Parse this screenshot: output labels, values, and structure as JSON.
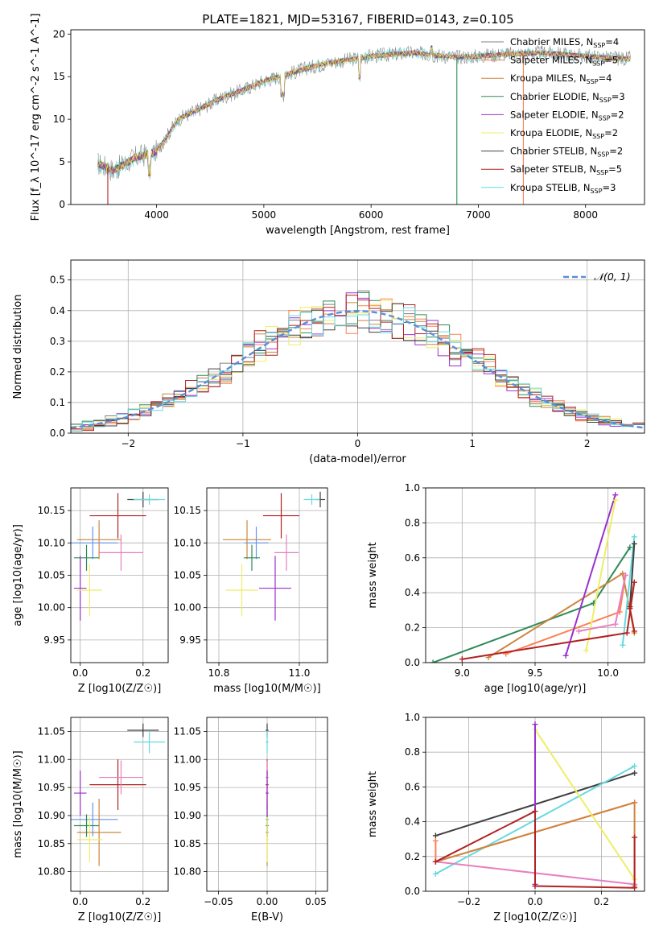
{
  "title": "PLATE=1821, MJD=53167, FIBERID=0143, z=0.105",
  "colors": {
    "chabrier_miles": "#808080",
    "salpeter_miles": "#ff7f50",
    "kroupa_miles": "#cd853f",
    "chabrier_elodie": "#2e8b57",
    "salpeter_elodie": "#9932cc",
    "kroupa_elodie": "#eeee66",
    "chabrier_stelib": "#404040",
    "salpeter_stelib": "#b22222",
    "kroupa_stelib": "#66d9e0",
    "extra_blue": "#6495ed",
    "extra_pink": "#e87fbf",
    "normal": "#5b8ed6"
  },
  "chart_data": [
    {
      "type": "line",
      "id": "spectrum",
      "xlabel": "wavelength [Angstrom, rest frame]",
      "ylabel": "Flux [f_λ 10^-17 erg cm^-2 s^-1 A^-1]",
      "xlim": [
        3200,
        8550
      ],
      "ylim": [
        0,
        20.5
      ],
      "xticks": [
        4000,
        5000,
        6000,
        7000,
        8000
      ],
      "yticks": [
        0,
        5,
        10,
        15,
        20
      ],
      "legend_position": "right",
      "x": [
        3450,
        3600,
        3800,
        4000,
        4200,
        4400,
        4600,
        4800,
        5000,
        5200,
        5400,
        5600,
        5800,
        6000,
        6200,
        6400,
        6600,
        6800,
        7000,
        7200,
        7400,
        7600,
        7800,
        8000,
        8200,
        8400
      ],
      "flux": [
        4.8,
        4.0,
        5.5,
        6.2,
        10.0,
        11.2,
        12.5,
        13.4,
        14.5,
        15.2,
        16.0,
        16.6,
        17.0,
        17.4,
        17.6,
        17.8,
        17.5,
        17.3,
        17.4,
        17.6,
        17.7,
        17.8,
        17.6,
        17.4,
        17.2,
        17.1
      ],
      "legend": [
        {
          "label": "Chabrier MILES, N",
          "sub": "SSP",
          "suffix": "=4",
          "color": "#808080"
        },
        {
          "label": "Salpeter MILES, N",
          "sub": "SSP",
          "suffix": "=5",
          "color": "#ff7f50"
        },
        {
          "label": "Kroupa MILES, N",
          "sub": "SSP",
          "suffix": "=4",
          "color": "#cd853f"
        },
        {
          "label": "Chabrier ELODIE, N",
          "sub": "SSP",
          "suffix": "=3",
          "color": "#2e8b57"
        },
        {
          "label": "Salpeter ELODIE, N",
          "sub": "SSP",
          "suffix": "=2",
          "color": "#9932cc"
        },
        {
          "label": "Kroupa ELODIE, N",
          "sub": "SSP",
          "suffix": "=2",
          "color": "#eeee66"
        },
        {
          "label": "Chabrier STELIB, N",
          "sub": "SSP",
          "suffix": "=2",
          "color": "#404040"
        },
        {
          "label": "Salpeter STELIB, N",
          "sub": "SSP",
          "suffix": "=5",
          "color": "#b22222"
        },
        {
          "label": "Kroupa STELIB, N",
          "sub": "SSP",
          "suffix": "=3",
          "color": "#66d9e0"
        }
      ]
    },
    {
      "type": "bar",
      "id": "residuals",
      "xlabel": "(data-model)/error",
      "ylabel": "Normed distribution",
      "xlim": [
        -2.5,
        2.5
      ],
      "ylim": [
        0,
        0.565
      ],
      "xticks": [
        -2,
        -1,
        0,
        1,
        2
      ],
      "yticks": [
        0.0,
        0.1,
        0.2,
        0.3,
        0.4,
        0.5
      ],
      "grid": true,
      "legend_position": "top-right",
      "normal_label": "𝒩(0, 1)",
      "bin_width": 0.1,
      "bin_start": -2.5
    },
    {
      "type": "scatter",
      "id": "age-vs-z",
      "xlabel": "Z [log10(Z/Z☉)]",
      "ylabel": "age [log10(age/yr)]",
      "xlim": [
        -0.03,
        0.28
      ],
      "ylim": [
        9.915,
        10.185
      ],
      "xticks": [
        0.0,
        0.2
      ],
      "yticks": [
        9.95,
        10.0,
        10.05,
        10.1,
        10.15
      ],
      "grid": true
    },
    {
      "type": "scatter",
      "id": "age-vs-mass",
      "xlabel": "mass [log10(M/M☉)]",
      "ylabel": "",
      "xlim": [
        10.77,
        11.07
      ],
      "ylim": [
        9.915,
        10.185
      ],
      "xticks": [
        10.8,
        11.0
      ],
      "yticks": [
        9.95,
        10.0,
        10.05,
        10.1,
        10.15
      ],
      "grid": true
    },
    {
      "type": "line",
      "id": "weight-vs-age",
      "xlabel": "age [log10(age/yr)]",
      "ylabel": "mass weight",
      "xlim": [
        8.75,
        10.25
      ],
      "ylim": [
        0,
        1.0
      ],
      "xticks": [
        9.0,
        9.5,
        10.0
      ],
      "yticks": [
        0.0,
        0.2,
        0.4,
        0.6,
        0.8,
        1.0
      ],
      "grid": true
    },
    {
      "type": "scatter",
      "id": "mass-vs-z",
      "xlabel": "Z [log10(Z/Z☉)]",
      "ylabel": "mass [log10(M/M☉)]",
      "xlim": [
        -0.03,
        0.28
      ],
      "ylim": [
        10.765,
        11.075
      ],
      "xticks": [
        0.0,
        0.2
      ],
      "yticks": [
        10.8,
        10.85,
        10.9,
        10.95,
        11.0,
        11.05
      ],
      "grid": true
    },
    {
      "type": "scatter",
      "id": "mass-vs-ebv",
      "xlabel": "E(B-V)",
      "ylabel": "",
      "xlim": [
        -0.062,
        0.062
      ],
      "ylim": [
        10.765,
        11.075
      ],
      "xticks": [
        -0.05,
        0.0,
        0.05
      ],
      "yticks": [
        10.8,
        10.85,
        10.9,
        10.95,
        11.0,
        11.05
      ],
      "grid": true
    },
    {
      "type": "line",
      "id": "weight-vs-z",
      "xlabel": "Z [log10(Z/Z☉)]",
      "ylabel": "mass weight",
      "xlim": [
        -0.33,
        0.33
      ],
      "ylim": [
        0,
        1.0
      ],
      "xticks": [
        -0.2,
        0.0,
        0.2
      ],
      "yticks": [
        0.0,
        0.2,
        0.4,
        0.6,
        0.8,
        1.0
      ],
      "grid": true
    }
  ]
}
